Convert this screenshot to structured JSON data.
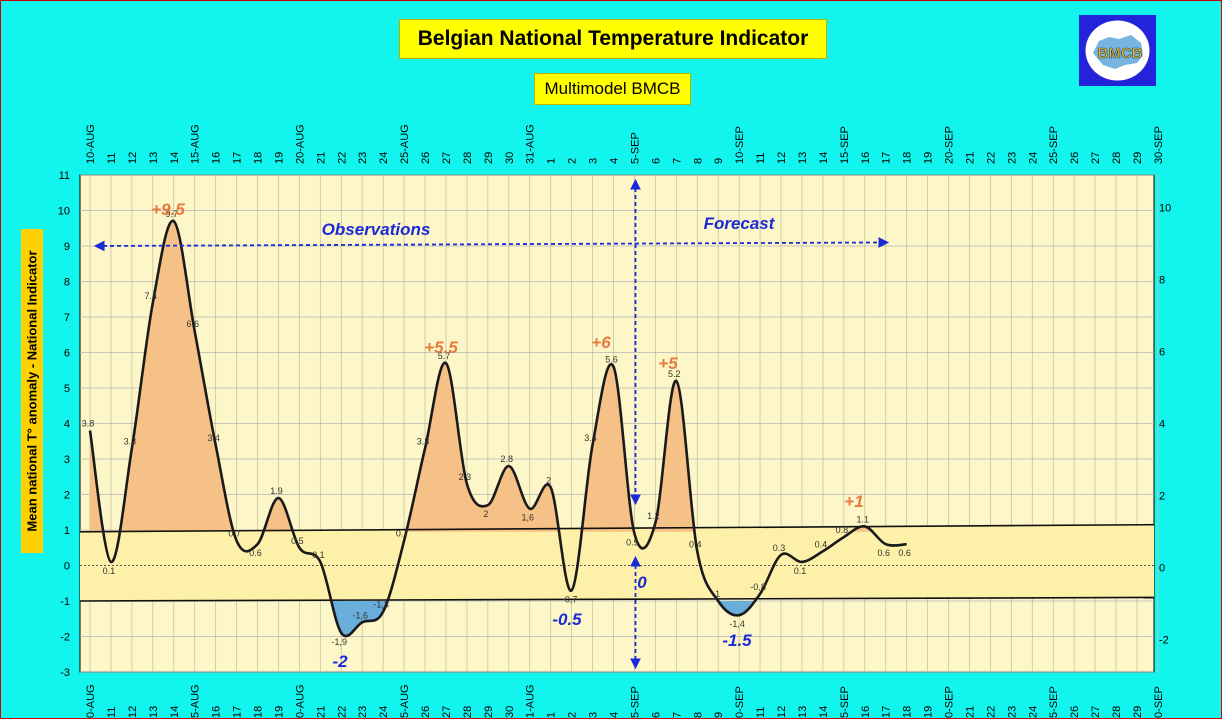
{
  "chart_data": {
    "type": "line",
    "title": "Belgian National Temperature Indicator",
    "subtitle": "Multimodel BMCB",
    "ylabel": "Mean national T° anomaly - National Indicator",
    "ylim": [
      -3,
      11
    ],
    "y_right_ticks": [
      "10",
      "8",
      "6",
      "4",
      "2",
      "0",
      "-2"
    ],
    "x_tick_labels": [
      "10-AUG",
      "11",
      "12",
      "13",
      "14",
      "15-AUG",
      "16",
      "17",
      "18",
      "19",
      "20-AUG",
      "21",
      "22",
      "23",
      "24",
      "25-AUG",
      "26",
      "27",
      "28",
      "29",
      "30",
      "31-AUG",
      "1",
      "2",
      "3",
      "4",
      "5-SEP",
      "6",
      "7",
      "8",
      "9",
      "10-SEP",
      "11",
      "12",
      "13",
      "14",
      "15-SEP",
      "16",
      "17",
      "18",
      "19",
      "20-SEP",
      "21",
      "22",
      "23",
      "24",
      "25-SEP",
      "26",
      "27",
      "28",
      "29",
      "30-SEP"
    ],
    "x_tick_labels_bottom": [
      "0-AUG",
      "11",
      "12",
      "13",
      "14",
      "5-AUG",
      "16",
      "17",
      "18",
      "19",
      "0-AUG",
      "21",
      "22",
      "23",
      "24",
      "5-AUG",
      "26",
      "27",
      "28",
      "29",
      "30",
      "1-AUG",
      "1",
      "2",
      "3",
      "4",
      "5-SEP",
      "6",
      "7",
      "8",
      "9",
      "0-SEP",
      "11",
      "12",
      "13",
      "14",
      "5-SEP",
      "16",
      "17",
      "18",
      "19",
      "0-SEP",
      "21",
      "22",
      "23",
      "24",
      "5-SEP",
      "26",
      "27",
      "28",
      "29",
      "0-SEP"
    ],
    "series": [
      {
        "values": [
          3.8,
          0.1,
          3.3,
          7.4,
          9.7,
          6.6,
          3.4,
          0.7,
          0.6,
          1.9,
          0.5,
          0.1,
          -1.9,
          -1.6,
          -1.3,
          0.7,
          3.3,
          5.7,
          2.3,
          1.7,
          2.8,
          1.6,
          2.2,
          -0.7,
          3.4,
          5.6,
          0.9,
          1.2,
          5.2,
          0.4,
          -1.0,
          -1.4,
          -0.8,
          0.3,
          0.1,
          0.4,
          0.8,
          1.1,
          0.6,
          0.6
        ],
        "data_labels": [
          "3.8",
          "0.1",
          "3.3",
          "7.4",
          "9.7",
          "6.6",
          "3.4",
          "0.7",
          "0.6",
          "1.9",
          "0.5",
          "0.1",
          "-1,9",
          "-1,6",
          "-1,3",
          "0.7",
          "3.3",
          "5.7",
          "2.3",
          "2",
          "2.8",
          "1,6",
          "2",
          "-0,7",
          "3.4",
          "5.6",
          "0.9",
          "1.2",
          "5.2",
          "0.4",
          "-1",
          "-1,4",
          "-0,8",
          "0.3",
          "0.1",
          "0.4",
          "0.8",
          "1.1",
          "0.6",
          "0.6"
        ],
        "color": "#1a1a1a"
      }
    ],
    "upper_threshold": {
      "start": 0.95,
      "end": 1.15
    },
    "lower_threshold": {
      "start": -1.0,
      "end": -0.9
    },
    "annotations": {
      "peaks": [
        "+9.5",
        "+5.5",
        "+6",
        "+5",
        "+1"
      ],
      "troughs": [
        "-2",
        "-0.5",
        "0",
        "-1.5"
      ],
      "observations": "Observations",
      "forecast": "Forecast"
    },
    "colors": {
      "background": "#12f5ee",
      "plot_area": "#fdf6c8",
      "positive_fill": "#f6c186",
      "negative_fill": "#6aaedb",
      "band_fill": "#fdf0a8",
      "peak_text": "#e87a3e",
      "trough_text": "#1a2ad6",
      "arrow": "#1a2ad6"
    },
    "grid": true,
    "legend": "none"
  },
  "logo": {
    "text": "BMCB"
  }
}
